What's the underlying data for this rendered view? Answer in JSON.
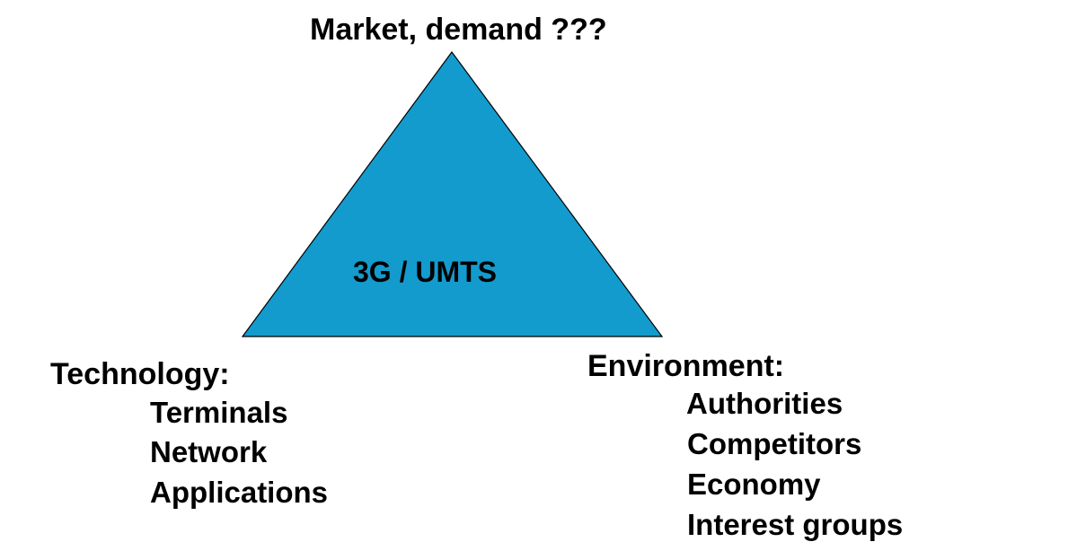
{
  "top_label": "Market, demand ???",
  "center_label": "3G / UMTS",
  "triangle": {
    "fill_color": "#139bcd",
    "stroke_color": "#000000"
  },
  "technology": {
    "heading": "Technology:",
    "items": [
      "Terminals",
      "Network",
      "Applications"
    ]
  },
  "environment": {
    "heading": "Environment:",
    "items": [
      "Authorities",
      "Competitors",
      "Economy",
      "Interest groups"
    ]
  }
}
